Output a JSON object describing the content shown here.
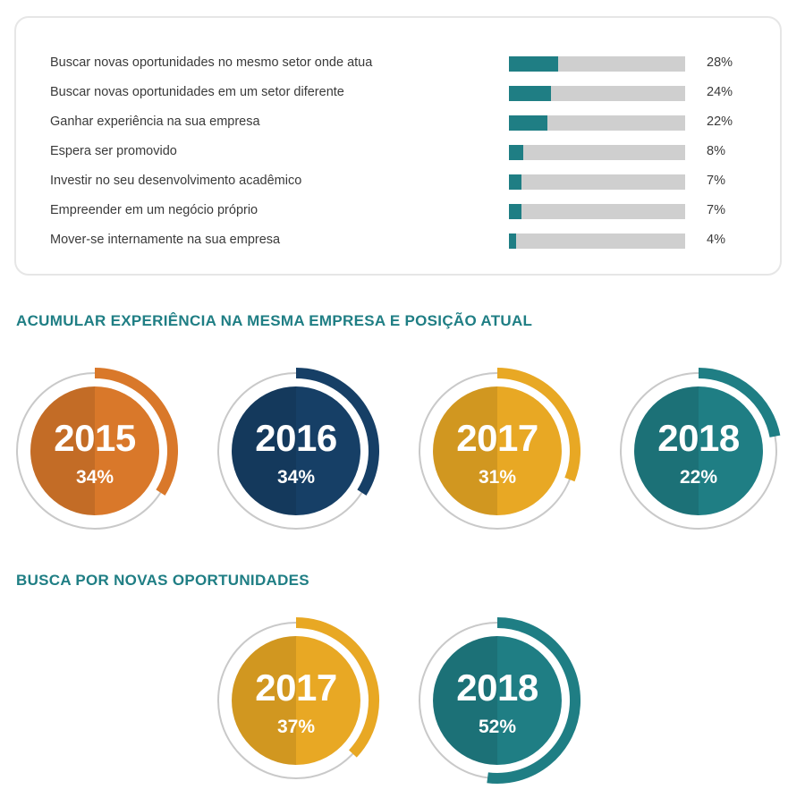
{
  "colors": {
    "bar_fill": "#1f7e84",
    "bar_track": "#cfcfcf",
    "title": "#1f7e84",
    "ring_gray": "#c9c9c9",
    "orange": "#d9782a",
    "navy": "#163f66",
    "gold": "#e8a824",
    "teal": "#1f7e84"
  },
  "chart_data": [
    {
      "type": "bar",
      "orientation": "horizontal",
      "categories": [
        "Buscar novas oportunidades no mesmo setor onde atua",
        "Buscar novas oportunidades em um setor diferente",
        "Ganhar experiência na sua empresa",
        "Espera ser promovido",
        "Investir no seu desenvolvimento acadêmico",
        "Empreender em um negócio próprio",
        "Mover-se internamente na sua empresa"
      ],
      "values": [
        28,
        24,
        22,
        8,
        7,
        7,
        4
      ],
      "value_labels": [
        "28%",
        "24%",
        "22%",
        "8%",
        "7%",
        "7%",
        "4%"
      ],
      "xlim": [
        0,
        100
      ]
    },
    {
      "type": "pie",
      "style": "donut-ring",
      "title": "ACUMULAR EXPERIÊNCIA NA MESMA EMPRESA E POSIÇÃO ATUAL",
      "items": [
        {
          "year": "2015",
          "value": 34,
          "label": "34%",
          "color": "#d9782a"
        },
        {
          "year": "2016",
          "value": 34,
          "label": "34%",
          "color": "#163f66"
        },
        {
          "year": "2017",
          "value": 31,
          "label": "31%",
          "color": "#e8a824"
        },
        {
          "year": "2018",
          "value": 22,
          "label": "22%",
          "color": "#1f7e84"
        }
      ]
    },
    {
      "type": "pie",
      "style": "donut-ring",
      "title": "BUSCA POR NOVAS OPORTUNIDADES",
      "items": [
        {
          "year": "2017",
          "value": 37,
          "label": "37%",
          "color": "#e8a824"
        },
        {
          "year": "2018",
          "value": 52,
          "label": "52%",
          "color": "#1f7e84"
        }
      ]
    }
  ]
}
